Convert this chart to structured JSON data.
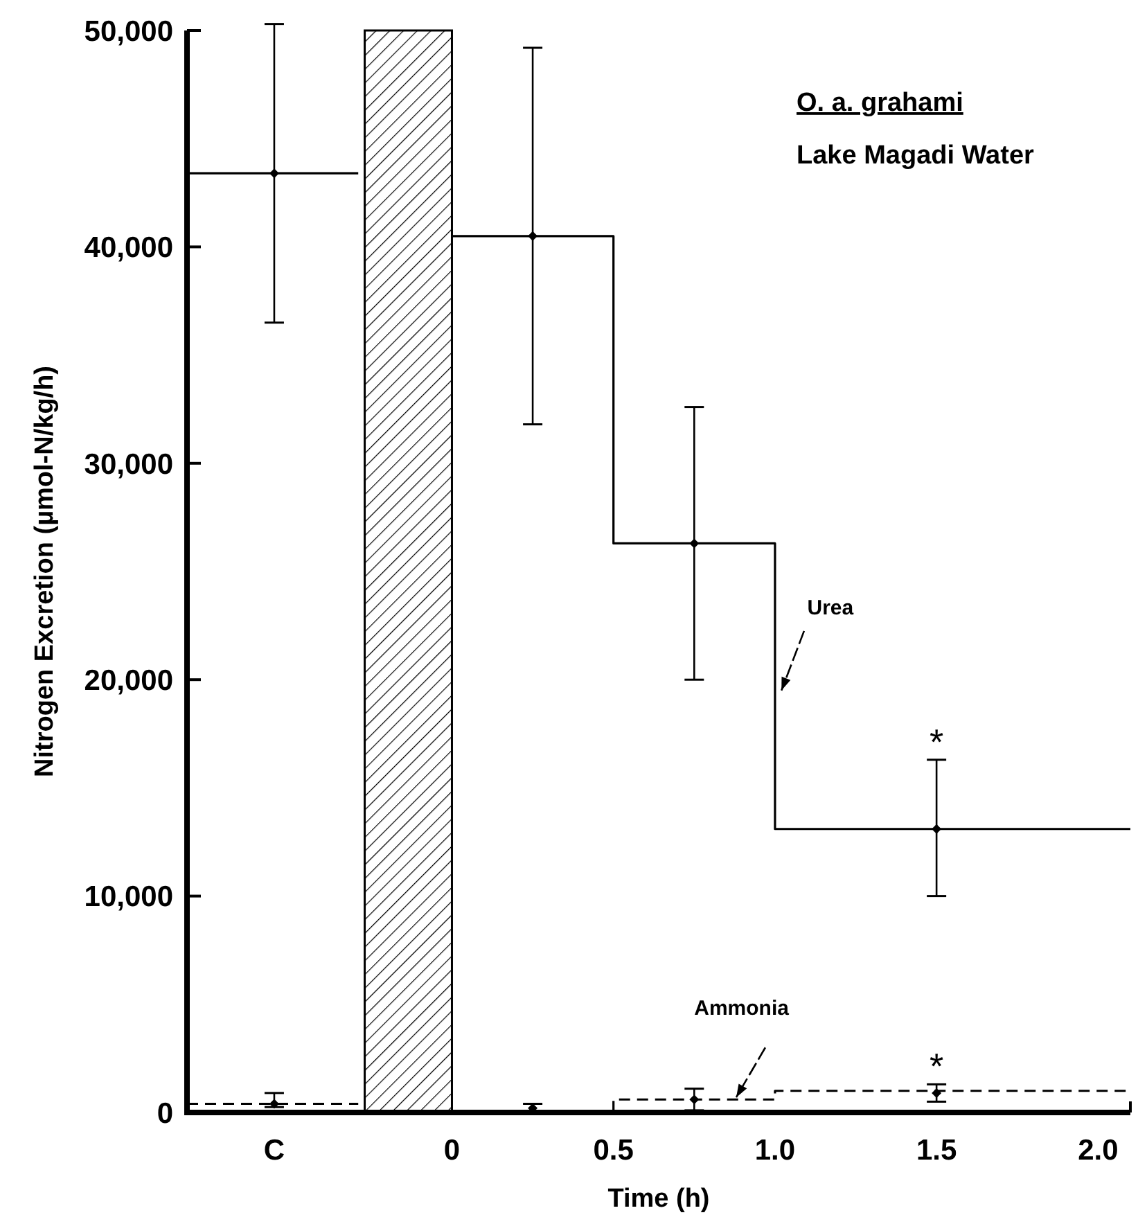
{
  "chart_data": {
    "type": "step",
    "title": "O. a. grahami",
    "subtitle": "Lake Magadi Water",
    "xlabel": "Time (h)",
    "ylabel": "Nitrogen Excretion (µmol-N/kg/h)",
    "xlim": [
      -0.82,
      2.1
    ],
    "xticks": [
      {
        "value": -0.55,
        "label": "C"
      },
      0,
      0.5,
      {
        "value": 1,
        "label": "1.0"
      },
      1.5,
      {
        "value": 2,
        "label": "2.0"
      }
    ],
    "ylim": [
      0,
      50000
    ],
    "yticks": [
      0,
      {
        "value": 10000,
        "label": "10,000"
      },
      {
        "value": 20000,
        "label": "20,000"
      },
      {
        "value": 30000,
        "label": "30,000"
      },
      {
        "value": 40000,
        "label": "40,000"
      },
      {
        "value": 50000,
        "label": "50,000"
      }
    ],
    "grid": false,
    "legend": false,
    "bands": [
      {
        "axis": "x",
        "from": -0.27,
        "to": 0,
        "color": "#000000"
      }
    ],
    "series": [
      {
        "name": "Urea",
        "color": "#000000",
        "line_style": "solid",
        "x": [
          -0.82,
          -0.29,
          0,
          0.5,
          1,
          2.1
        ],
        "values": [
          43400,
          null,
          40500,
          26300,
          13100,
          13100
        ]
      },
      {
        "name": "Ammonia",
        "color": "#000000",
        "line_style": "dashed",
        "x": [
          -0.82,
          -0.29,
          0,
          0.5,
          1,
          2.1
        ],
        "values": [
          400,
          null,
          0,
          600,
          1000,
          1000
        ]
      },
      {
        "type": "scatter",
        "color": "#000000",
        "marker": "diamond",
        "x": [
          -0.55,
          0.25,
          0.75,
          1.5
        ],
        "values": [
          43400,
          40500,
          26300,
          13100
        ],
        "errors": [
          [
            36500,
            50300
          ],
          [
            31800,
            49200
          ],
          [
            20000,
            32600
          ],
          [
            10000,
            16300
          ]
        ]
      },
      {
        "type": "scatter",
        "color": "#000000",
        "marker": "diamond",
        "x": [
          -0.55,
          0.25,
          0.75,
          1.5
        ],
        "values": [
          400,
          200,
          600,
          900
        ],
        "errors": [
          [
            250,
            900
          ],
          200,
          500,
          400
        ]
      }
    ],
    "annotations": [
      {
        "text": "*",
        "x": 1.5,
        "y": 16300
      },
      {
        "text": "*",
        "x": 1.5,
        "y": 1300
      }
    ]
  }
}
